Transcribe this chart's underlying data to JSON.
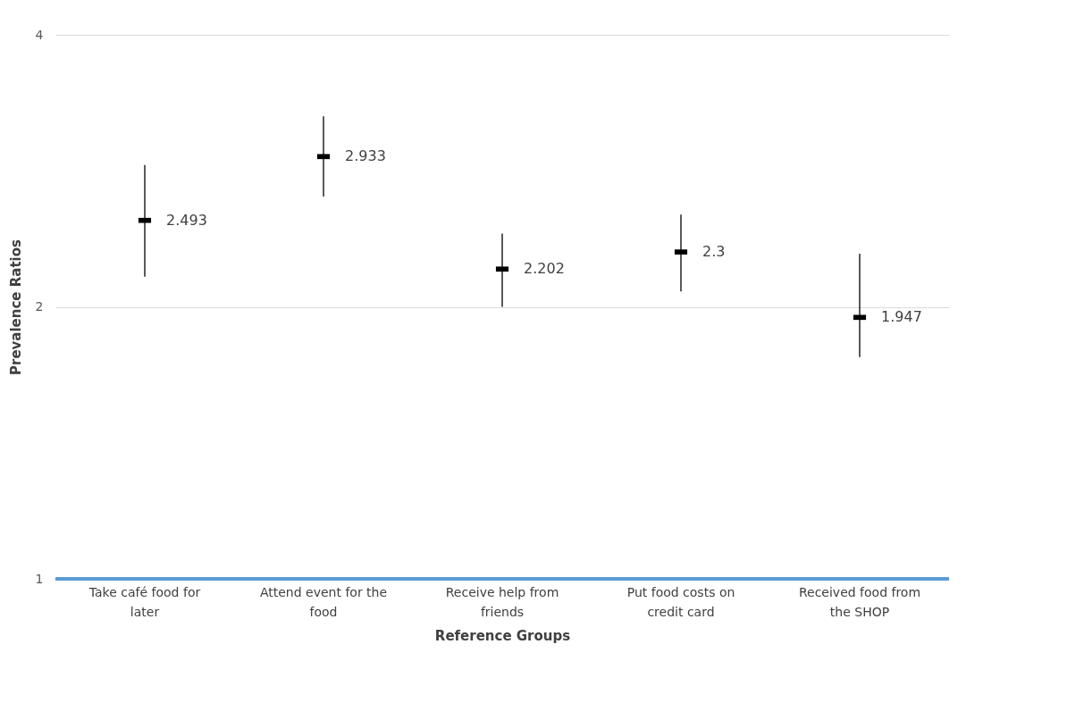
{
  "chart_data": {
    "type": "scatter",
    "xlabel": "Reference Groups",
    "ylabel": "Prevalence Ratios",
    "categories": [
      "Take café food for later",
      "Attend event for the food",
      "Receive help from friends",
      "Put food costs on credit card",
      "Received food from the SHOP"
    ],
    "series": [
      {
        "color": "#000000",
        "values": [
          2.493,
          2.933,
          2.202,
          2.3,
          1.947
        ],
        "errors": [
          [
            2.16,
            2.87
          ],
          [
            2.65,
            3.25
          ],
          [
            2.0,
            2.41
          ],
          [
            2.08,
            2.53
          ],
          [
            1.76,
            2.29
          ]
        ]
      }
    ],
    "data_labels": true,
    "log": true,
    "ylim": [
      1,
      4
    ],
    "yticks": [
      1,
      2,
      4
    ],
    "grid": "y",
    "ref_lines": [
      {
        "axis": "y",
        "value": 1,
        "color": "#5b9bd5"
      }
    ]
  }
}
